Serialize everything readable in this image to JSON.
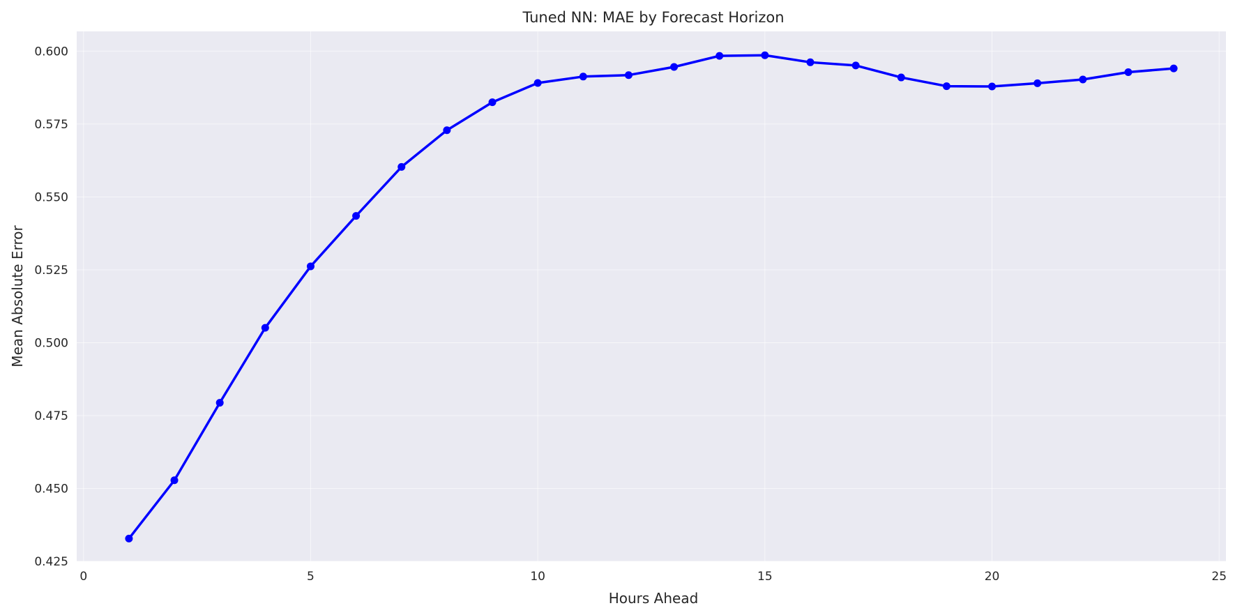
{
  "chart_data": {
    "type": "line",
    "title": "Tuned NN: MAE by Forecast Horizon",
    "xlabel": "Hours Ahead",
    "ylabel": "Mean Absolute Error",
    "xlim": [
      -0.15,
      25.15
    ],
    "ylim": [
      0.425,
      0.6068
    ],
    "xticks": [
      0,
      5,
      10,
      15,
      20,
      25
    ],
    "xtick_labels": [
      "0",
      "5",
      "10",
      "15",
      "20",
      "25"
    ],
    "yticks": [
      0.425,
      0.45,
      0.475,
      0.5,
      0.525,
      0.55,
      0.575,
      0.6
    ],
    "ytick_labels": [
      "0.425",
      "0.450",
      "0.475",
      "0.500",
      "0.525",
      "0.550",
      "0.575",
      "0.600"
    ],
    "grid": true,
    "series": [
      {
        "x": [
          1,
          2,
          3,
          4,
          5,
          6,
          7,
          8,
          9,
          10,
          11,
          12,
          13,
          14,
          15,
          16,
          17,
          18,
          19,
          20,
          21,
          22,
          23,
          24
        ],
        "y": [
          0.4328,
          0.4528,
          0.4794,
          0.5051,
          0.5262,
          0.5435,
          0.5603,
          0.5729,
          0.5825,
          0.5891,
          0.5913,
          0.5918,
          0.5946,
          0.5984,
          0.5986,
          0.5962,
          0.5951,
          0.591,
          0.588,
          0.5879,
          0.589,
          0.5903,
          0.5928,
          0.5941
        ],
        "color": "#0000ff",
        "marker": "circle"
      }
    ],
    "colors": {
      "plot_background": "#eaeaf2",
      "grid": "#ffffff",
      "text": "#262626",
      "line": "#0000ff"
    }
  }
}
